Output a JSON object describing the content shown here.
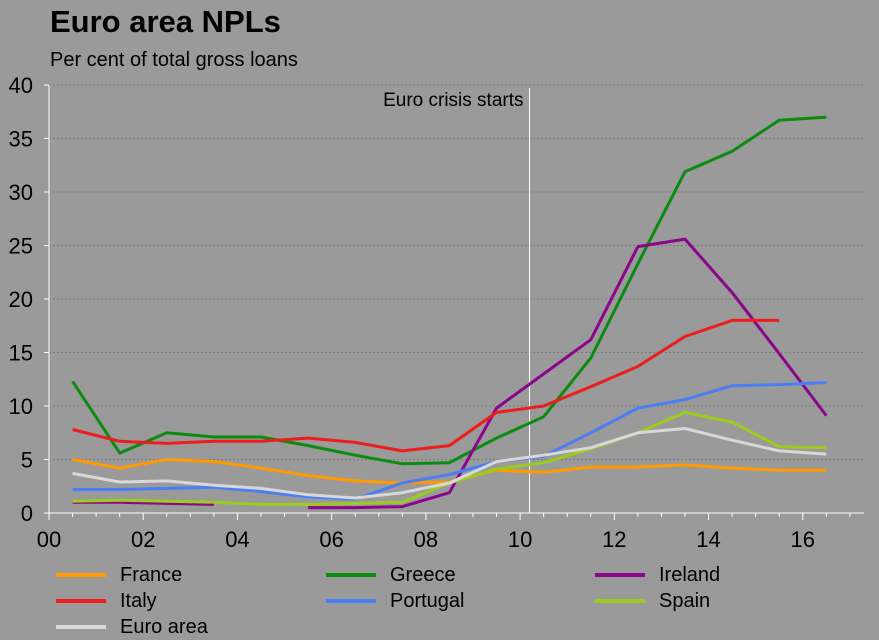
{
  "header": {
    "title": "Euro area NPLs",
    "subtitle": "Per cent of total gross loans"
  },
  "chart_data": {
    "type": "line",
    "title": "Euro area NPLs",
    "subtitle": "Per cent of total gross loans",
    "xlabel": "",
    "ylabel": "",
    "xlim": [
      0,
      17.3
    ],
    "ylim": [
      0,
      40
    ],
    "x_ticks": [
      0,
      2,
      4,
      6,
      8,
      10,
      12,
      14,
      16
    ],
    "x_tick_labels": [
      "00",
      "02",
      "04",
      "06",
      "08",
      "10",
      "12",
      "14",
      "16"
    ],
    "y_ticks": [
      0,
      5,
      10,
      15,
      20,
      25,
      30,
      35,
      40
    ],
    "y_tick_labels": [
      "0",
      "5",
      "10",
      "15",
      "20",
      "25",
      "30",
      "35",
      "40"
    ],
    "grid": "horizontal dotted",
    "legend_position": "bottom",
    "annotation": {
      "text": "Euro crisis starts",
      "x": 10.2
    },
    "series": [
      {
        "name": "France",
        "color": "#ff9a00",
        "points": [
          [
            0.5,
            5.0
          ],
          [
            1.5,
            4.2
          ],
          [
            2.5,
            5.0
          ],
          [
            3.5,
            4.8
          ],
          [
            4.5,
            4.2
          ],
          [
            5.5,
            3.5
          ],
          [
            6.5,
            3.0
          ],
          [
            7.5,
            2.8
          ],
          [
            8.5,
            2.9
          ],
          [
            9.5,
            4.0
          ],
          [
            10.5,
            3.8
          ],
          [
            11.5,
            4.3
          ],
          [
            12.5,
            4.3
          ],
          [
            13.5,
            4.5
          ],
          [
            14.5,
            4.2
          ],
          [
            15.5,
            4.0
          ],
          [
            16.5,
            4.0
          ]
        ]
      },
      {
        "name": "Greece",
        "color": "#0b8c10",
        "points": [
          [
            0.5,
            12.3
          ],
          [
            1.5,
            5.6
          ],
          [
            2.5,
            7.5
          ],
          [
            3.5,
            7.1
          ],
          [
            4.5,
            7.1
          ],
          [
            5.5,
            6.3
          ],
          [
            6.5,
            5.4
          ],
          [
            7.5,
            4.6
          ],
          [
            8.5,
            4.7
          ],
          [
            9.5,
            7.0
          ],
          [
            10.5,
            9.0
          ],
          [
            11.5,
            14.5
          ],
          [
            12.5,
            23.3
          ],
          [
            13.5,
            31.9
          ],
          [
            14.5,
            33.8
          ],
          [
            15.5,
            36.7
          ],
          [
            16.5,
            37.0
          ]
        ]
      },
      {
        "name": "Ireland",
        "color": "#8b068b",
        "points": [
          [
            0.5,
            1.0
          ],
          [
            1.5,
            1.0
          ],
          [
            2.5,
            0.9
          ],
          [
            3.5,
            0.8
          ],
          null,
          [
            5.5,
            0.5
          ],
          [
            6.5,
            0.5
          ],
          [
            7.5,
            0.6
          ],
          [
            8.5,
            1.9
          ],
          [
            9.5,
            9.8
          ],
          [
            10.5,
            13.0
          ],
          [
            11.5,
            16.2
          ],
          [
            12.5,
            24.9
          ],
          [
            13.5,
            25.6
          ],
          [
            14.5,
            20.6
          ],
          [
            15.5,
            14.9
          ],
          [
            16.5,
            9.1
          ]
        ]
      },
      {
        "name": "Italy",
        "color": "#ee1c1c",
        "points": [
          [
            0.5,
            7.8
          ],
          [
            1.5,
            6.7
          ],
          [
            2.5,
            6.5
          ],
          [
            3.5,
            6.7
          ],
          [
            4.5,
            6.7
          ],
          [
            5.5,
            7.0
          ],
          [
            6.5,
            6.6
          ],
          [
            7.5,
            5.8
          ],
          [
            8.5,
            6.3
          ],
          [
            9.5,
            9.4
          ],
          [
            10.5,
            10.0
          ],
          [
            11.5,
            11.8
          ],
          [
            12.5,
            13.7
          ],
          [
            13.5,
            16.5
          ],
          [
            14.5,
            18.0
          ],
          [
            15.5,
            18.0
          ]
        ]
      },
      {
        "name": "Portugal",
        "color": "#4a7ef5",
        "points": [
          [
            0.5,
            2.2
          ],
          [
            1.5,
            2.2
          ],
          [
            2.5,
            2.3
          ],
          [
            3.5,
            2.4
          ],
          [
            4.5,
            2.0
          ],
          [
            5.5,
            1.5
          ],
          [
            6.5,
            1.3
          ],
          [
            7.5,
            2.8
          ],
          [
            8.5,
            3.6
          ],
          [
            9.5,
            4.8
          ],
          [
            10.5,
            5.3
          ],
          [
            11.5,
            7.5
          ],
          [
            12.5,
            9.8
          ],
          [
            13.5,
            10.6
          ],
          [
            14.5,
            11.9
          ],
          [
            15.5,
            12.0
          ],
          [
            16.5,
            12.2
          ]
        ]
      },
      {
        "name": "Spain",
        "color": "#9ccc1e",
        "points": [
          [
            0.5,
            1.1
          ],
          [
            1.5,
            1.2
          ],
          [
            2.5,
            1.1
          ],
          [
            3.5,
            1.0
          ],
          [
            4.5,
            0.8
          ],
          [
            5.5,
            0.8
          ],
          [
            6.5,
            0.9
          ],
          [
            7.5,
            1.0
          ],
          [
            8.5,
            2.8
          ],
          [
            9.5,
            4.1
          ],
          [
            10.5,
            4.7
          ],
          [
            11.5,
            6.0
          ],
          [
            12.5,
            7.5
          ],
          [
            13.5,
            9.4
          ],
          [
            14.5,
            8.5
          ],
          [
            15.5,
            6.2
          ],
          [
            16.5,
            6.1
          ]
        ]
      },
      {
        "name": "Euro area",
        "color": "#d8d8d8",
        "points": [
          [
            0.5,
            3.7
          ],
          [
            1.5,
            2.9
          ],
          [
            2.5,
            3.0
          ],
          [
            3.5,
            2.6
          ],
          [
            4.5,
            2.3
          ],
          [
            5.5,
            1.7
          ],
          [
            6.5,
            1.4
          ],
          [
            7.5,
            1.9
          ],
          [
            8.5,
            2.8
          ],
          [
            9.5,
            4.8
          ],
          [
            10.5,
            5.4
          ],
          [
            11.5,
            6.1
          ],
          [
            12.5,
            7.5
          ],
          [
            13.5,
            7.9
          ],
          [
            14.5,
            6.8
          ],
          [
            15.5,
            5.8
          ],
          [
            16.5,
            5.5
          ]
        ]
      }
    ]
  }
}
